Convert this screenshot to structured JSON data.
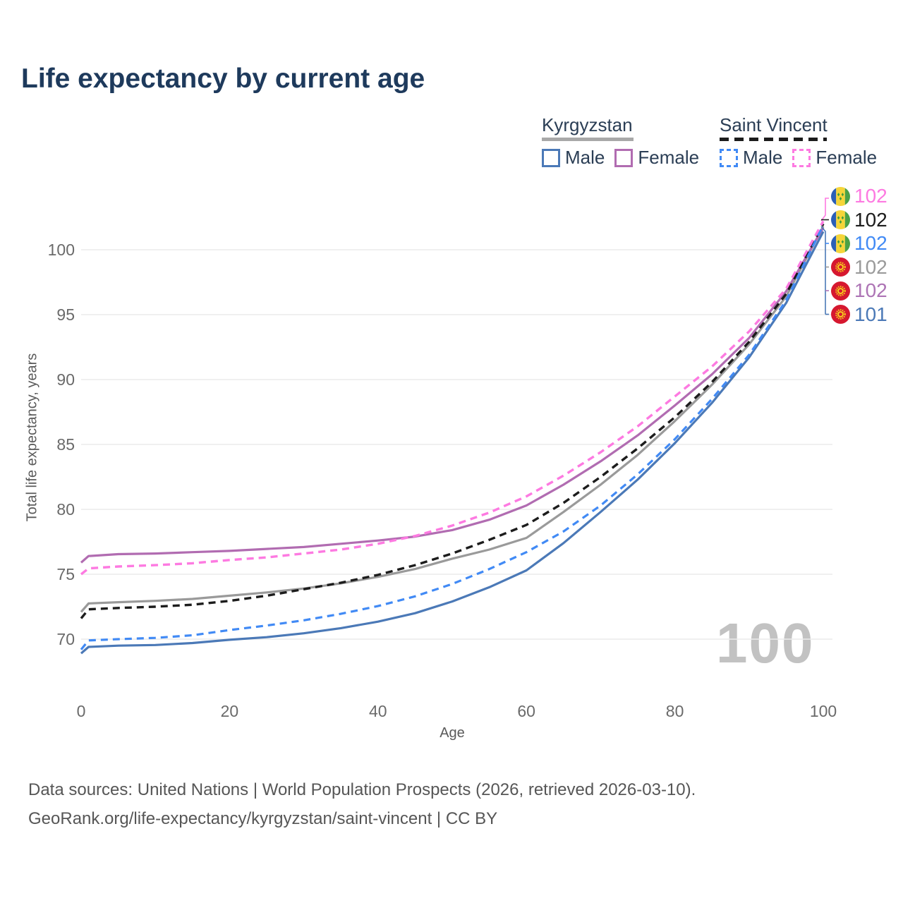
{
  "header": {
    "title": "Life expectancy by current age"
  },
  "legend": {
    "groups": [
      {
        "name": "Kyrgyzstan",
        "line_style": "solid",
        "underline_color": "#a8a8a8",
        "items": [
          {
            "label": "Male",
            "color": "#4b79b7",
            "dashed": false
          },
          {
            "label": "Female",
            "color": "#b16cb1",
            "dashed": false
          }
        ]
      },
      {
        "name": "Saint Vincent",
        "line_style": "dashed",
        "underline_color": "#1c1c1c",
        "items": [
          {
            "label": "Male",
            "color": "#418af5",
            "dashed": true
          },
          {
            "label": "Female",
            "color": "#fd7ae1",
            "dashed": true
          }
        ]
      }
    ]
  },
  "chart_data": {
    "type": "line",
    "title": "Life expectancy by current age",
    "xlabel": "Age",
    "ylabel": "Total life expectancy, years",
    "watermark": "100",
    "x_ticks": [
      0,
      20,
      40,
      60,
      80,
      100
    ],
    "y_ticks": [
      70,
      75,
      80,
      85,
      90,
      95,
      100
    ],
    "xlim": [
      0,
      100
    ],
    "ylim": [
      68.5,
      103.5
    ],
    "grid": "horizontal",
    "x": [
      0,
      1,
      5,
      10,
      15,
      20,
      25,
      30,
      35,
      40,
      45,
      50,
      55,
      60,
      65,
      70,
      75,
      80,
      85,
      90,
      95,
      100
    ],
    "series": [
      {
        "name": "Kyrgyzstan Total",
        "country": "Kyrgyzstan",
        "sex": "Total",
        "color": "#9a9a9a",
        "dash": false,
        "width": 3.2,
        "values": [
          72.1,
          72.75,
          72.85,
          72.95,
          73.1,
          73.35,
          73.6,
          73.9,
          74.3,
          74.8,
          75.4,
          76.2,
          76.9,
          77.8,
          79.8,
          81.9,
          84.2,
          86.8,
          89.6,
          92.7,
          96.4,
          101.8
        ]
      },
      {
        "name": "Kyrgyzstan Female",
        "country": "Kyrgyzstan",
        "sex": "Female",
        "color": "#b16cb1",
        "dash": false,
        "width": 3.2,
        "values": [
          75.9,
          76.4,
          76.55,
          76.6,
          76.7,
          76.8,
          76.95,
          77.1,
          77.35,
          77.6,
          77.9,
          78.4,
          79.2,
          80.3,
          81.9,
          83.7,
          85.7,
          88.0,
          90.4,
          93.2,
          96.8,
          101.7
        ]
      },
      {
        "name": "Kyrgyzstan Male",
        "country": "Kyrgyzstan",
        "sex": "Male",
        "color": "#4b79b7",
        "dash": false,
        "width": 3.2,
        "values": [
          68.9,
          69.4,
          69.5,
          69.55,
          69.7,
          69.95,
          70.15,
          70.45,
          70.85,
          71.35,
          72.0,
          72.9,
          74.0,
          75.3,
          77.4,
          79.8,
          82.3,
          85.1,
          88.2,
          91.7,
          95.9,
          101.4
        ]
      },
      {
        "name": "Saint Vincent Total",
        "country": "Saint Vincent",
        "sex": "Total",
        "color": "#1c1c1c",
        "dash": true,
        "width": 3.4,
        "values": [
          71.6,
          72.3,
          72.4,
          72.5,
          72.65,
          72.95,
          73.35,
          73.85,
          74.35,
          74.95,
          75.7,
          76.6,
          77.65,
          78.8,
          80.5,
          82.5,
          84.7,
          87.1,
          89.8,
          92.9,
          96.6,
          102.0
        ]
      },
      {
        "name": "Saint Vincent Male",
        "country": "Saint Vincent",
        "sex": "Male",
        "color": "#418af5",
        "dash": true,
        "width": 3.2,
        "values": [
          69.2,
          69.9,
          70.0,
          70.1,
          70.3,
          70.7,
          71.05,
          71.45,
          71.95,
          72.55,
          73.3,
          74.25,
          75.4,
          76.7,
          78.3,
          80.3,
          82.7,
          85.4,
          88.5,
          91.9,
          96.1,
          101.9
        ]
      },
      {
        "name": "Saint Vincent Female",
        "country": "Saint Vincent",
        "sex": "Female",
        "color": "#fd7ae1",
        "dash": true,
        "width": 3.4,
        "values": [
          75.0,
          75.45,
          75.6,
          75.7,
          75.85,
          76.1,
          76.3,
          76.6,
          76.9,
          77.35,
          77.95,
          78.75,
          79.75,
          81.0,
          82.6,
          84.4,
          86.4,
          88.7,
          91.0,
          93.7,
          97.0,
          102.2
        ]
      }
    ],
    "end_labels": [
      {
        "flag": "sv",
        "text": "102",
        "color": "#fd7ae1"
      },
      {
        "flag": "sv",
        "text": "102",
        "color": "#1c1c1c"
      },
      {
        "flag": "sv",
        "text": "102",
        "color": "#418af5"
      },
      {
        "flag": "kg",
        "text": "102",
        "color": "#9a9a9a"
      },
      {
        "flag": "kg",
        "text": "102",
        "color": "#ad74b5"
      },
      {
        "flag": "kg",
        "text": "101",
        "color": "#4b79b7"
      }
    ]
  },
  "footer": {
    "line1": "Data sources: United Nations | World Population Prospects (2026, retrieved 2026-03-10).",
    "line2": "GeoRank.org/life-expectancy/kyrgyzstan/saint-vincent | CC BY"
  }
}
